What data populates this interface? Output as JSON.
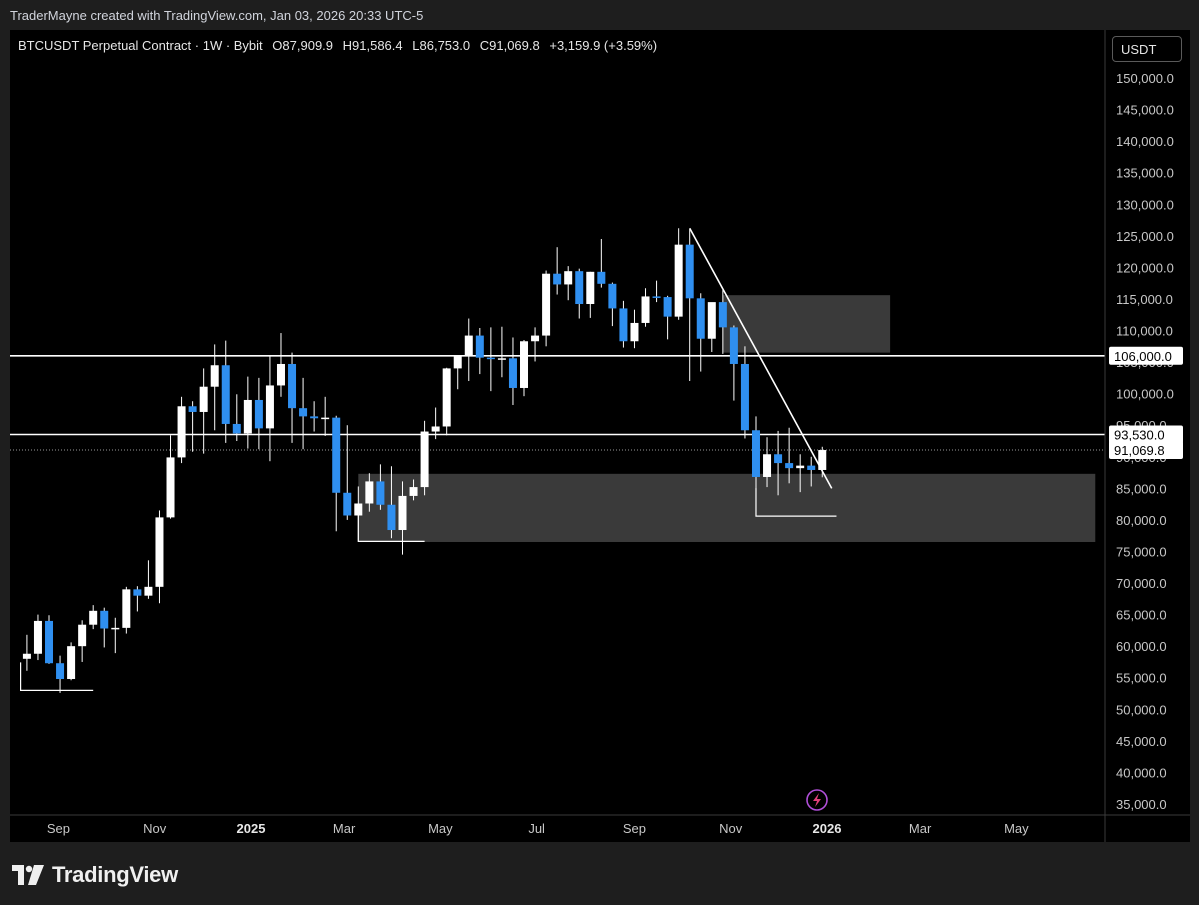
{
  "header": {
    "credit": "TraderMayne created with TradingView.com, Jan 03, 2026 20:33 UTC-5"
  },
  "legend": {
    "symbol": "BTCUSDT Perpetual Contract · 1W · Bybit",
    "open": "O87,909.9",
    "high": "H91,586.4",
    "low": "L86,753.0",
    "close": "C91,069.8",
    "change": "+3,159.9 (+3.59%)"
  },
  "currency_button": "USDT",
  "footer": {
    "brand": "TradingView"
  },
  "colors": {
    "background": "#000000",
    "frame": "#1e1e1e",
    "up_candle": "#ffffff",
    "down_candle": "#2f8ff0",
    "zone": "#3a3a3a",
    "alert_icon": "#b04fd8"
  },
  "chart_data": {
    "type": "candlestick",
    "title": "BTCUSDT Perpetual Contract · 1W · Bybit",
    "timeframe": "1W",
    "y_axis": {
      "unit": "USDT",
      "range": [
        33000,
        155000
      ],
      "ticks": [
        "35,000.0",
        "40,000.0",
        "45,000.0",
        "50,000.0",
        "55,000.0",
        "60,000.0",
        "65,000.0",
        "70,000.0",
        "75,000.0",
        "80,000.0",
        "85,000.0",
        "90,000.0",
        "95,000.0",
        "100,000.0",
        "105,000.0",
        "110,000.0",
        "115,000.0",
        "120,000.0",
        "125,000.0",
        "130,000.0",
        "135,000.0",
        "140,000.0",
        "145,000.0",
        "150,000.0"
      ],
      "tick_values": [
        35000,
        40000,
        45000,
        50000,
        55000,
        60000,
        65000,
        70000,
        75000,
        80000,
        85000,
        90000,
        95000,
        100000,
        105000,
        110000,
        115000,
        120000,
        125000,
        130000,
        135000,
        140000,
        145000,
        150000
      ]
    },
    "x_axis": {
      "labels": [
        "Sep",
        "Nov",
        "2025",
        "Mar",
        "May",
        "Jul",
        "Sep",
        "Nov",
        "2026",
        "Mar",
        "May"
      ],
      "bold": [
        false,
        false,
        true,
        false,
        false,
        false,
        false,
        false,
        true,
        false,
        false
      ],
      "label_dates": [
        "2024-09-01",
        "2024-11-01",
        "2025-01-01",
        "2025-03-01",
        "2025-05-01",
        "2025-07-01",
        "2025-09-01",
        "2025-11-01",
        "2026-01-01",
        "2026-03-01",
        "2026-05-01"
      ],
      "visible_range": [
        "2024-08-08",
        "2026-06-20"
      ]
    },
    "price_tags": [
      {
        "label": "106,000.0",
        "value": 106000,
        "style": "horizontal-line"
      },
      {
        "label": "93,530.0",
        "value": 93530,
        "style": "horizontal-line"
      },
      {
        "label": "91,069.8",
        "value": 91069.8,
        "style": "last-price"
      }
    ],
    "candles": [
      {
        "date": "2024-08-12",
        "o": 58000,
        "h": 61800,
        "l": 56100,
        "c": 58800
      },
      {
        "date": "2024-08-19",
        "o": 58800,
        "h": 65000,
        "l": 57800,
        "c": 64000
      },
      {
        "date": "2024-08-26",
        "o": 64000,
        "h": 64900,
        "l": 57200,
        "c": 57300
      },
      {
        "date": "2024-09-02",
        "o": 57300,
        "h": 58500,
        "l": 52600,
        "c": 54800
      },
      {
        "date": "2024-09-09",
        "o": 54800,
        "h": 60600,
        "l": 54600,
        "c": 60000
      },
      {
        "date": "2024-09-16",
        "o": 60000,
        "h": 64100,
        "l": 57500,
        "c": 63400
      },
      {
        "date": "2024-09-23",
        "o": 63400,
        "h": 66500,
        "l": 62700,
        "c": 65600
      },
      {
        "date": "2024-09-30",
        "o": 65600,
        "h": 66100,
        "l": 59800,
        "c": 62800
      },
      {
        "date": "2024-10-07",
        "o": 62800,
        "h": 64500,
        "l": 58900,
        "c": 62900
      },
      {
        "date": "2024-10-14",
        "o": 62900,
        "h": 69400,
        "l": 62000,
        "c": 69000
      },
      {
        "date": "2024-10-21",
        "o": 69000,
        "h": 69500,
        "l": 65500,
        "c": 68000
      },
      {
        "date": "2024-10-28",
        "o": 68000,
        "h": 73600,
        "l": 67500,
        "c": 69400
      },
      {
        "date": "2024-11-04",
        "o": 69400,
        "h": 81500,
        "l": 66800,
        "c": 80400
      },
      {
        "date": "2024-11-11",
        "o": 80400,
        "h": 93400,
        "l": 80200,
        "c": 89900
      },
      {
        "date": "2024-11-18",
        "o": 89900,
        "h": 99500,
        "l": 89000,
        "c": 98000
      },
      {
        "date": "2024-11-25",
        "o": 98000,
        "h": 98800,
        "l": 90800,
        "c": 97100
      },
      {
        "date": "2024-12-02",
        "o": 97100,
        "h": 104000,
        "l": 90500,
        "c": 101100
      },
      {
        "date": "2024-12-09",
        "o": 101100,
        "h": 107800,
        "l": 94200,
        "c": 104500
      },
      {
        "date": "2024-12-16",
        "o": 104500,
        "h": 108400,
        "l": 92200,
        "c": 95200
      },
      {
        "date": "2024-12-23",
        "o": 95200,
        "h": 99900,
        "l": 92500,
        "c": 93700
      },
      {
        "date": "2024-12-30",
        "o": 93700,
        "h": 102700,
        "l": 91300,
        "c": 99000
      },
      {
        "date": "2025-01-06",
        "o": 99000,
        "h": 102500,
        "l": 91200,
        "c": 94500
      },
      {
        "date": "2025-01-13",
        "o": 94500,
        "h": 106000,
        "l": 89300,
        "c": 101300
      },
      {
        "date": "2025-01-20",
        "o": 101300,
        "h": 109600,
        "l": 99500,
        "c": 104700
      },
      {
        "date": "2025-01-27",
        "o": 104700,
        "h": 106500,
        "l": 92200,
        "c": 97700
      },
      {
        "date": "2025-02-03",
        "o": 97700,
        "h": 102500,
        "l": 91200,
        "c": 96400
      },
      {
        "date": "2025-02-10",
        "o": 96400,
        "h": 98800,
        "l": 94000,
        "c": 96100
      },
      {
        "date": "2025-02-17",
        "o": 96100,
        "h": 99500,
        "l": 93300,
        "c": 96200
      },
      {
        "date": "2025-02-24",
        "o": 96200,
        "h": 96500,
        "l": 78200,
        "c": 84300
      },
      {
        "date": "2025-03-03",
        "o": 84300,
        "h": 95000,
        "l": 80000,
        "c": 80700
      },
      {
        "date": "2025-03-10",
        "o": 80700,
        "h": 85300,
        "l": 76600,
        "c": 82600
      },
      {
        "date": "2025-03-17",
        "o": 82600,
        "h": 87400,
        "l": 81300,
        "c": 86100
      },
      {
        "date": "2025-03-24",
        "o": 86100,
        "h": 88800,
        "l": 81600,
        "c": 82400
      },
      {
        "date": "2025-03-31",
        "o": 82400,
        "h": 88500,
        "l": 77100,
        "c": 78400
      },
      {
        "date": "2025-04-07",
        "o": 78400,
        "h": 86100,
        "l": 74500,
        "c": 83800
      },
      {
        "date": "2025-04-14",
        "o": 83800,
        "h": 86400,
        "l": 83100,
        "c": 85200
      },
      {
        "date": "2025-04-21",
        "o": 85200,
        "h": 95700,
        "l": 83900,
        "c": 94000
      },
      {
        "date": "2025-04-28",
        "o": 94000,
        "h": 97800,
        "l": 92800,
        "c": 94800
      },
      {
        "date": "2025-05-05",
        "o": 94800,
        "h": 104100,
        "l": 93400,
        "c": 104000
      },
      {
        "date": "2025-05-12",
        "o": 104000,
        "h": 105800,
        "l": 100700,
        "c": 106000
      },
      {
        "date": "2025-05-19",
        "o": 106000,
        "h": 111900,
        "l": 102000,
        "c": 109200
      },
      {
        "date": "2025-05-26",
        "o": 109200,
        "h": 110400,
        "l": 103100,
        "c": 105700
      },
      {
        "date": "2025-06-02",
        "o": 105700,
        "h": 110500,
        "l": 100400,
        "c": 105500
      },
      {
        "date": "2025-06-09",
        "o": 105500,
        "h": 110600,
        "l": 102600,
        "c": 105600
      },
      {
        "date": "2025-06-16",
        "o": 105600,
        "h": 108900,
        "l": 98200,
        "c": 100900
      },
      {
        "date": "2025-06-23",
        "o": 100900,
        "h": 108500,
        "l": 99600,
        "c": 108300
      },
      {
        "date": "2025-06-30",
        "o": 108300,
        "h": 110500,
        "l": 105100,
        "c": 109200
      },
      {
        "date": "2025-07-07",
        "o": 109200,
        "h": 119500,
        "l": 107500,
        "c": 119000
      },
      {
        "date": "2025-07-14",
        "o": 119000,
        "h": 123200,
        "l": 115700,
        "c": 117300
      },
      {
        "date": "2025-07-21",
        "o": 117300,
        "h": 120200,
        "l": 114800,
        "c": 119400
      },
      {
        "date": "2025-07-28",
        "o": 119400,
        "h": 119800,
        "l": 111900,
        "c": 114200
      },
      {
        "date": "2025-08-04",
        "o": 114200,
        "h": 119300,
        "l": 112000,
        "c": 119300
      },
      {
        "date": "2025-08-11",
        "o": 119300,
        "h": 124500,
        "l": 116800,
        "c": 117400
      },
      {
        "date": "2025-08-18",
        "o": 117400,
        "h": 117600,
        "l": 110700,
        "c": 113500
      },
      {
        "date": "2025-08-25",
        "o": 113500,
        "h": 114700,
        "l": 107300,
        "c": 108300
      },
      {
        "date": "2025-09-01",
        "o": 108300,
        "h": 113300,
        "l": 107200,
        "c": 111200
      },
      {
        "date": "2025-09-08",
        "o": 111200,
        "h": 116700,
        "l": 110600,
        "c": 115400
      },
      {
        "date": "2025-09-15",
        "o": 115400,
        "h": 117900,
        "l": 114500,
        "c": 115300
      },
      {
        "date": "2025-09-22",
        "o": 115300,
        "h": 115500,
        "l": 108600,
        "c": 112200
      },
      {
        "date": "2025-09-29",
        "o": 112200,
        "h": 126200,
        "l": 111700,
        "c": 123600
      },
      {
        "date": "2025-10-06",
        "o": 123600,
        "h": 126100,
        "l": 102000,
        "c": 115100
      },
      {
        "date": "2025-10-13",
        "o": 115100,
        "h": 115900,
        "l": 103500,
        "c": 108700
      },
      {
        "date": "2025-10-20",
        "o": 108700,
        "h": 114000,
        "l": 106600,
        "c": 114500
      },
      {
        "date": "2025-10-27",
        "o": 114500,
        "h": 116400,
        "l": 106300,
        "c": 110500
      },
      {
        "date": "2025-11-03",
        "o": 110500,
        "h": 110800,
        "l": 98900,
        "c": 104700
      },
      {
        "date": "2025-11-10",
        "o": 104700,
        "h": 107500,
        "l": 92900,
        "c": 94200
      },
      {
        "date": "2025-11-17",
        "o": 94200,
        "h": 96400,
        "l": 80600,
        "c": 86800
      },
      {
        "date": "2025-11-24",
        "o": 86800,
        "h": 93100,
        "l": 85200,
        "c": 90400
      },
      {
        "date": "2025-12-01",
        "o": 90400,
        "h": 94100,
        "l": 83900,
        "c": 89000
      },
      {
        "date": "2025-12-08",
        "o": 89000,
        "h": 94600,
        "l": 85800,
        "c": 88200
      },
      {
        "date": "2025-12-15",
        "o": 88200,
        "h": 90400,
        "l": 84400,
        "c": 88600
      },
      {
        "date": "2025-12-22",
        "o": 88600,
        "h": 90000,
        "l": 85300,
        "c": 87909.9
      },
      {
        "date": "2025-12-29",
        "o": 87909.9,
        "h": 91586.4,
        "l": 86753.0,
        "c": 91069.8
      }
    ],
    "annotations": [
      {
        "kind": "trendline",
        "from": {
          "date": "2025-10-06",
          "price": 126200
        },
        "to": {
          "date": "2026-01-04",
          "price": 85000
        }
      },
      {
        "kind": "zone",
        "from_date": "2025-10-27",
        "to_date": "2026-02-10",
        "bottom": 106500,
        "top": 115600
      },
      {
        "kind": "zone",
        "from_date": "2025-03-10",
        "to_date": "2026-06-20",
        "bottom": 76500,
        "top": 87300
      },
      {
        "kind": "level",
        "from_date": "2025-11-17",
        "to_date": "2026-01-07",
        "price": 80600
      },
      {
        "kind": "level",
        "from_date": "2025-03-10",
        "to_date": "2025-04-21",
        "price": 76600
      },
      {
        "kind": "level",
        "from_date": "2024-08-08",
        "to_date": "2024-09-23",
        "price": 53000
      }
    ]
  }
}
